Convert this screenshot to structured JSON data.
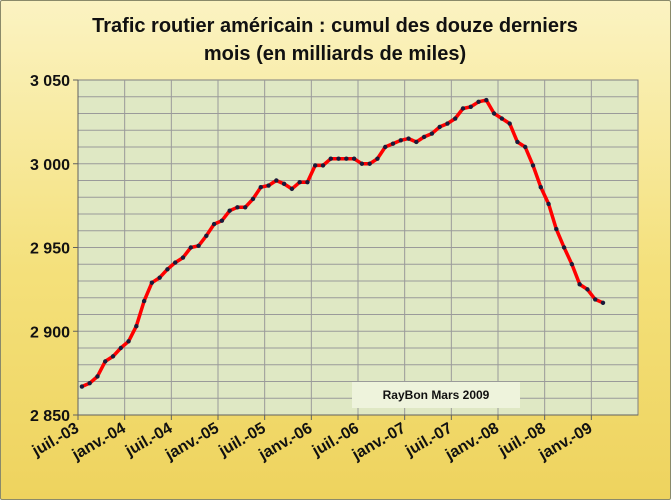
{
  "chart_data": {
    "type": "line",
    "title_line1": "Trafic routier américain : cumul  des douze derniers",
    "title_line2": "mois  (en milliards de miles)",
    "ylim": [
      2850,
      3050
    ],
    "yticks": [
      2850,
      2900,
      2950,
      3000,
      3050
    ],
    "ytick_labels": [
      "2 850",
      "2 900",
      "2 950",
      "3 000",
      "3 050"
    ],
    "xtick_labels": [
      "juil.-03",
      "janv.-04",
      "juil.-04",
      "janv.-05",
      "juil.-05",
      "janv.-06",
      "juil.-06",
      "janv.-07",
      "juil.-07",
      "janv.-08",
      "juil.-08",
      "janv.-09"
    ],
    "grid": true,
    "annotation": "RayBon Mars 2009",
    "colors": {
      "line": "#ff0000",
      "marker": "#1a1a3a",
      "plot_bg": "#dfe8c4",
      "grid": "#9a9a9a"
    },
    "series": [
      {
        "x": [
          "2003-07",
          "2003-08",
          "2003-09",
          "2003-10",
          "2003-11",
          "2003-12",
          "2004-01",
          "2004-02",
          "2004-03",
          "2004-04",
          "2004-05",
          "2004-06",
          "2004-07",
          "2004-08",
          "2004-09",
          "2004-10",
          "2004-11",
          "2004-12",
          "2005-01",
          "2005-02",
          "2005-03",
          "2005-04",
          "2005-05",
          "2005-06",
          "2005-07",
          "2005-08",
          "2005-09",
          "2005-10",
          "2005-11",
          "2005-12",
          "2006-01",
          "2006-02",
          "2006-03",
          "2006-04",
          "2006-05",
          "2006-06",
          "2006-07",
          "2006-08",
          "2006-09",
          "2006-10",
          "2006-11",
          "2006-12",
          "2007-01",
          "2007-02",
          "2007-03",
          "2007-04",
          "2007-05",
          "2007-06",
          "2007-07",
          "2007-08",
          "2007-09",
          "2007-10",
          "2007-11",
          "2007-12",
          "2008-01",
          "2008-02",
          "2008-03",
          "2008-04",
          "2008-05",
          "2008-06",
          "2008-07",
          "2008-08",
          "2008-09",
          "2008-10",
          "2008-11",
          "2008-12",
          "2009-01",
          "2009-02"
        ],
        "values": [
          2867,
          2869,
          2873,
          2882,
          2885,
          2890,
          2894,
          2903,
          2918,
          2929,
          2932,
          2937,
          2941,
          2944,
          2950,
          2951,
          2957,
          2964,
          2966,
          2972,
          2974,
          2974,
          2979,
          2986,
          2987,
          2990,
          2988,
          2985,
          2989,
          2989,
          2999,
          2999,
          3003,
          3003,
          3003,
          3003,
          3000,
          3000,
          3003,
          3010,
          3012,
          3014,
          3015,
          3013,
          3016,
          3018,
          3022,
          3024,
          3027,
          3033,
          3034,
          3037,
          3038,
          3030,
          3027,
          3024,
          3013,
          3010,
          2999,
          2986,
          2976,
          2961,
          2950,
          2940,
          2928,
          2925,
          2919,
          2917
        ]
      }
    ]
  }
}
